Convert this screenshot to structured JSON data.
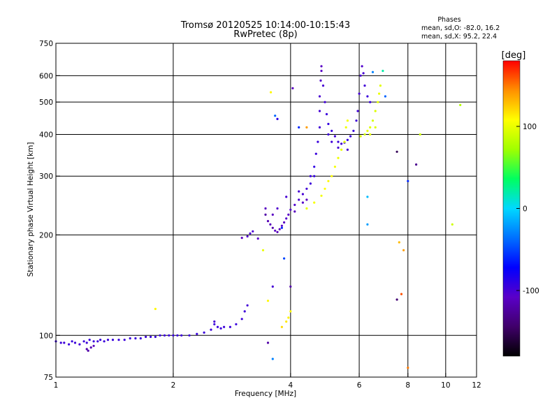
{
  "chart_data": {
    "type": "scatter",
    "title": "Tromsø 20120525 10:14:00-10:15:43",
    "subtitle": "RwPretec (8p)",
    "phases_info": {
      "heading": "Phases",
      "line_o": "mean, sd,O: -82.0, 16.2",
      "line_x": "mean, sd,X: 95.2, 22.4"
    },
    "xlabel": "Frequency [MHz]",
    "ylabel": "Stationary phase Virtual Height [km]",
    "x_scale": "log",
    "y_scale": "log",
    "xlim": [
      1,
      12
    ],
    "ylim": [
      75,
      750
    ],
    "x_ticks": [
      {
        "value": 1,
        "label": "1"
      },
      {
        "value": 2,
        "label": "2"
      },
      {
        "value": 4,
        "label": "4"
      },
      {
        "value": 6,
        "label": "6"
      },
      {
        "value": 8,
        "label": "8"
      },
      {
        "value": 10,
        "label": "10"
      },
      {
        "value": 12,
        "label": "12"
      }
    ],
    "y_ticks": [
      {
        "value": 75,
        "label": "75"
      },
      {
        "value": 100,
        "label": "100"
      },
      {
        "value": 200,
        "label": "200"
      },
      {
        "value": 300,
        "label": "300"
      },
      {
        "value": 400,
        "label": "400"
      },
      {
        "value": 500,
        "label": "500"
      },
      {
        "value": 600,
        "label": "600"
      },
      {
        "value": 750,
        "label": "750"
      }
    ],
    "x_grid": [
      2,
      4,
      6,
      8,
      10
    ],
    "y_grid": [
      100,
      200,
      300,
      400,
      500,
      600
    ],
    "grid": true,
    "colorbar": {
      "label": "[deg]",
      "min": -180,
      "max": 180,
      "ticks": [
        {
          "value": 100,
          "label": "100"
        },
        {
          "value": 0,
          "label": "0"
        },
        {
          "value": -100,
          "label": "-100"
        }
      ],
      "colormap": [
        "#000000",
        "#40006a",
        "#5a00c8",
        "#0000ff",
        "#0070ff",
        "#00d8ff",
        "#00ff60",
        "#a0ff00",
        "#ffff00",
        "#ff9000",
        "#ff0000"
      ]
    },
    "series": [
      {
        "points": [
          [
            1.0,
            96,
            -95
          ],
          [
            1.03,
            95,
            -96
          ],
          [
            1.05,
            95,
            -97
          ],
          [
            1.08,
            94,
            -95
          ],
          [
            1.1,
            96,
            -94
          ],
          [
            1.12,
            95,
            -96
          ],
          [
            1.15,
            94,
            -98
          ],
          [
            1.18,
            96,
            -95
          ],
          [
            1.2,
            95,
            -96
          ],
          [
            1.22,
            97,
            -95
          ],
          [
            1.25,
            96,
            -94
          ],
          [
            1.28,
            96,
            -96
          ],
          [
            1.3,
            97,
            -95
          ],
          [
            1.33,
            96,
            -95
          ],
          [
            1.36,
            97,
            -96
          ],
          [
            1.4,
            97,
            -94
          ],
          [
            1.45,
            97,
            -95
          ],
          [
            1.5,
            97,
            -96
          ],
          [
            1.55,
            98,
            -95
          ],
          [
            1.6,
            98,
            -94
          ],
          [
            1.65,
            98,
            -95
          ],
          [
            1.7,
            99,
            -96
          ],
          [
            1.75,
            99,
            -95
          ],
          [
            1.8,
            99,
            -94
          ],
          [
            1.85,
            100,
            -95
          ],
          [
            1.9,
            100,
            -96
          ],
          [
            1.95,
            100,
            -95
          ],
          [
            2.0,
            100,
            -94
          ],
          [
            2.05,
            100,
            -95
          ],
          [
            2.1,
            100,
            -96
          ],
          [
            2.2,
            100,
            -95
          ],
          [
            2.3,
            101,
            -94
          ],
          [
            2.4,
            102,
            -95
          ],
          [
            2.5,
            104,
            -96
          ],
          [
            2.55,
            108,
            -95
          ],
          [
            2.6,
            106,
            -94
          ],
          [
            2.65,
            105,
            -95
          ],
          [
            2.7,
            106,
            -96
          ],
          [
            2.8,
            106,
            -95
          ],
          [
            2.9,
            108,
            -94
          ],
          [
            3.0,
            112,
            -96
          ],
          [
            3.05,
            118,
            -97
          ],
          [
            3.1,
            123,
            -98
          ],
          [
            1.21,
            90,
            -120
          ],
          [
            1.23,
            92,
            -118
          ],
          [
            1.25,
            93,
            -112
          ],
          [
            1.2,
            91,
            -118
          ],
          [
            2.55,
            110,
            -100
          ],
          [
            3.0,
            196,
            -110
          ],
          [
            3.1,
            198,
            -105
          ],
          [
            3.15,
            202,
            -100
          ],
          [
            3.2,
            205,
            -102
          ],
          [
            3.3,
            195,
            -108
          ],
          [
            3.45,
            240,
            -110
          ],
          [
            3.45,
            230,
            -120
          ],
          [
            3.5,
            220,
            -115
          ],
          [
            3.55,
            215,
            -112
          ],
          [
            3.6,
            210,
            -118
          ],
          [
            3.65,
            206,
            -110
          ],
          [
            3.7,
            204,
            -115
          ],
          [
            3.75,
            208,
            -112
          ],
          [
            3.8,
            213,
            -108
          ],
          [
            3.85,
            218,
            -110
          ],
          [
            3.9,
            224,
            -106
          ],
          [
            3.95,
            230,
            -108
          ],
          [
            4.0,
            238,
            -105
          ],
          [
            4.1,
            246,
            -104
          ],
          [
            4.2,
            255,
            -102
          ],
          [
            4.3,
            265,
            -100
          ],
          [
            4.4,
            275,
            -98
          ],
          [
            4.5,
            285,
            -96
          ],
          [
            4.6,
            300,
            -92
          ],
          [
            4.4,
            255,
            -110
          ],
          [
            4.3,
            250,
            -106
          ],
          [
            4.1,
            235,
            -112
          ],
          [
            3.9,
            260,
            -100
          ],
          [
            3.7,
            240,
            -105
          ],
          [
            3.6,
            230,
            -110
          ],
          [
            4.2,
            270,
            -100
          ],
          [
            4.5,
            300,
            -95
          ],
          [
            4.6,
            320,
            -90
          ],
          [
            4.65,
            350,
            -95
          ],
          [
            4.7,
            380,
            -95
          ],
          [
            4.75,
            420,
            -98
          ],
          [
            4.75,
            470,
            -100
          ],
          [
            4.75,
            520,
            -102
          ],
          [
            4.78,
            580,
            -105
          ],
          [
            4.8,
            620,
            -108
          ],
          [
            4.8,
            640,
            -110
          ],
          [
            4.85,
            560,
            -100
          ],
          [
            4.9,
            500,
            -98
          ],
          [
            4.95,
            460,
            -95
          ],
          [
            5.0,
            430,
            -92
          ],
          [
            5.1,
            410,
            -95
          ],
          [
            5.2,
            395,
            -98
          ],
          [
            5.3,
            380,
            -96
          ],
          [
            5.4,
            375,
            -97
          ],
          [
            5.5,
            378,
            -95
          ],
          [
            5.6,
            385,
            -93
          ],
          [
            5.7,
            395,
            -95
          ],
          [
            5.8,
            410,
            -94
          ],
          [
            5.9,
            440,
            -96
          ],
          [
            5.95,
            470,
            -98
          ],
          [
            6.0,
            530,
            -100
          ],
          [
            6.05,
            600,
            -102
          ],
          [
            6.1,
            640,
            -105
          ],
          [
            6.15,
            610,
            -100
          ],
          [
            6.2,
            560,
            -98
          ],
          [
            6.3,
            520,
            -95
          ],
          [
            6.4,
            500,
            -94
          ],
          [
            5.0,
            400,
            -96
          ],
          [
            5.1,
            380,
            -98
          ],
          [
            5.3,
            365,
            -100
          ],
          [
            4.4,
            240,
            100
          ],
          [
            4.6,
            250,
            105
          ],
          [
            4.8,
            262,
            103
          ],
          [
            4.9,
            275,
            108
          ],
          [
            5.0,
            290,
            110
          ],
          [
            5.1,
            300,
            107
          ],
          [
            5.2,
            320,
            104
          ],
          [
            5.3,
            340,
            102
          ],
          [
            5.4,
            360,
            100
          ],
          [
            5.5,
            380,
            98
          ],
          [
            5.55,
            420,
            102
          ],
          [
            5.6,
            440,
            105
          ],
          [
            6.05,
            395,
            95
          ],
          [
            6.2,
            400,
            92
          ],
          [
            6.3,
            410,
            98
          ],
          [
            6.4,
            420,
            96
          ],
          [
            6.5,
            440,
            93
          ],
          [
            6.6,
            470,
            95
          ],
          [
            6.7,
            500,
            98
          ],
          [
            6.75,
            530,
            100
          ],
          [
            6.8,
            560,
            97
          ],
          [
            6.4,
            400,
            100
          ],
          [
            6.6,
            420,
            96
          ],
          [
            3.9,
            110,
            115
          ],
          [
            3.95,
            113,
            112
          ],
          [
            4.0,
            118,
            110
          ],
          [
            3.8,
            106,
            120
          ],
          [
            3.56,
            535,
            110
          ],
          [
            3.65,
            455,
            -40
          ],
          [
            3.7,
            445,
            -90
          ],
          [
            4.05,
            550,
            -110
          ],
          [
            4.2,
            420,
            -60
          ],
          [
            4.4,
            420,
            140
          ],
          [
            5.6,
            360,
            -100
          ],
          [
            6.3,
            260,
            -10
          ],
          [
            6.3,
            215,
            -20
          ],
          [
            6.5,
            615,
            -30
          ],
          [
            6.9,
            620,
            20
          ],
          [
            7.0,
            520,
            -40
          ],
          [
            7.5,
            355,
            -150
          ],
          [
            8.0,
            290,
            -60
          ],
          [
            8.4,
            325,
            -130
          ],
          [
            8.6,
            400,
            90
          ],
          [
            10.4,
            215,
            90
          ],
          [
            10.9,
            490,
            80
          ],
          [
            7.6,
            190,
            130
          ],
          [
            7.8,
            180,
            140
          ],
          [
            7.5,
            128,
            -140
          ],
          [
            7.7,
            133,
            160
          ],
          [
            8.0,
            80,
            150
          ],
          [
            3.6,
            85,
            -30
          ],
          [
            3.5,
            95,
            -120
          ],
          [
            3.4,
            180,
            100
          ],
          [
            3.8,
            210,
            -60
          ],
          [
            3.85,
            170,
            -50
          ],
          [
            4.0,
            140,
            -120
          ],
          [
            3.6,
            140,
            -100
          ],
          [
            3.5,
            127,
            110
          ],
          [
            1.8,
            120,
            110
          ]
        ]
      }
    ]
  }
}
